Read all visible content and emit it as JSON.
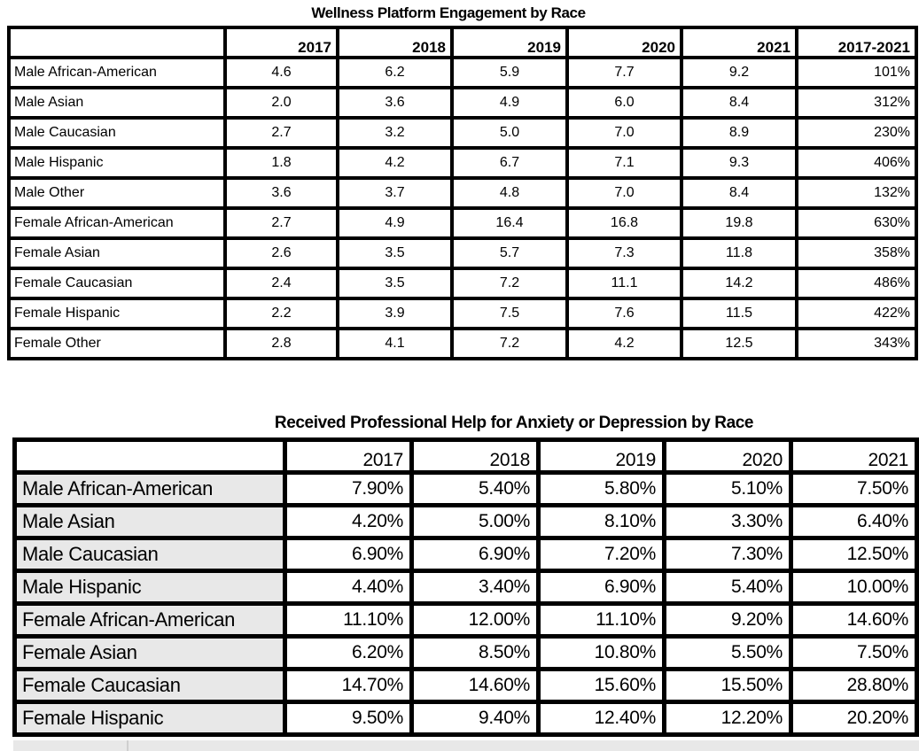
{
  "page": {
    "background": "#ffffff"
  },
  "colors": {
    "border": "#000000",
    "text": "#000000",
    "row_label_fill": "#e8e8e8",
    "cutoff_strip": "#e8e8e8"
  },
  "chart_data": [
    {
      "type": "table",
      "title": "Wellness Platform Engagement by Race",
      "columns": [
        "",
        "2017",
        "2018",
        "2019",
        "2020",
        "2021",
        "2017-2021"
      ],
      "rows": [
        {
          "label": "Male African-American",
          "values": [
            "4.6",
            "6.2",
            "5.9",
            "7.7",
            "9.2",
            "101%"
          ]
        },
        {
          "label": "Male Asian",
          "values": [
            "2.0",
            "3.6",
            "4.9",
            "6.0",
            "8.4",
            "312%"
          ]
        },
        {
          "label": "Male Caucasian",
          "values": [
            "2.7",
            "3.2",
            "5.0",
            "7.0",
            "8.9",
            "230%"
          ]
        },
        {
          "label": "Male Hispanic",
          "values": [
            "1.8",
            "4.2",
            "6.7",
            "7.1",
            "9.3",
            "406%"
          ]
        },
        {
          "label": "Male Other",
          "values": [
            "3.6",
            "3.7",
            "4.8",
            "7.0",
            "8.4",
            "132%"
          ]
        },
        {
          "label": "Female African-American",
          "values": [
            "2.7",
            "4.9",
            "16.4",
            "16.8",
            "19.8",
            "630%"
          ]
        },
        {
          "label": "Female Asian",
          "values": [
            "2.6",
            "3.5",
            "5.7",
            "7.3",
            "11.8",
            "358%"
          ]
        },
        {
          "label": "Female Caucasian",
          "values": [
            "2.4",
            "3.5",
            "7.2",
            "11.1",
            "14.2",
            "486%"
          ]
        },
        {
          "label": "Female Hispanic",
          "values": [
            "2.2",
            "3.9",
            "7.5",
            "7.6",
            "11.5",
            "422%"
          ]
        },
        {
          "label": "Female Other",
          "values": [
            "2.8",
            "4.1",
            "7.2",
            "4.2",
            "12.5",
            "343%"
          ]
        }
      ]
    },
    {
      "type": "table",
      "title": "Received Professional Help for Anxiety or Depression by Race",
      "columns": [
        "",
        "2017",
        "2018",
        "2019",
        "2020",
        "2021"
      ],
      "rows": [
        {
          "label": "Male African-American",
          "values": [
            "7.90%",
            "5.40%",
            "5.80%",
            "5.10%",
            "7.50%"
          ]
        },
        {
          "label": "Male Asian",
          "values": [
            "4.20%",
            "5.00%",
            "8.10%",
            "3.30%",
            "6.40%"
          ]
        },
        {
          "label": "Male Caucasian",
          "values": [
            "6.90%",
            "6.90%",
            "7.20%",
            "7.30%",
            "12.50%"
          ]
        },
        {
          "label": "Male Hispanic",
          "values": [
            "4.40%",
            "3.40%",
            "6.90%",
            "5.40%",
            "10.00%"
          ]
        },
        {
          "label": "Female African-American",
          "values": [
            "11.10%",
            "12.00%",
            "11.10%",
            "9.20%",
            "14.60%"
          ]
        },
        {
          "label": "Female Asian",
          "values": [
            "6.20%",
            "8.50%",
            "10.80%",
            "5.50%",
            "7.50%"
          ]
        },
        {
          "label": "Female Caucasian",
          "values": [
            "14.70%",
            "14.60%",
            "15.60%",
            "15.50%",
            "28.80%"
          ]
        },
        {
          "label": "Female Hispanic",
          "values": [
            "9.50%",
            "9.40%",
            "12.40%",
            "12.20%",
            "20.20%"
          ]
        }
      ]
    }
  ]
}
